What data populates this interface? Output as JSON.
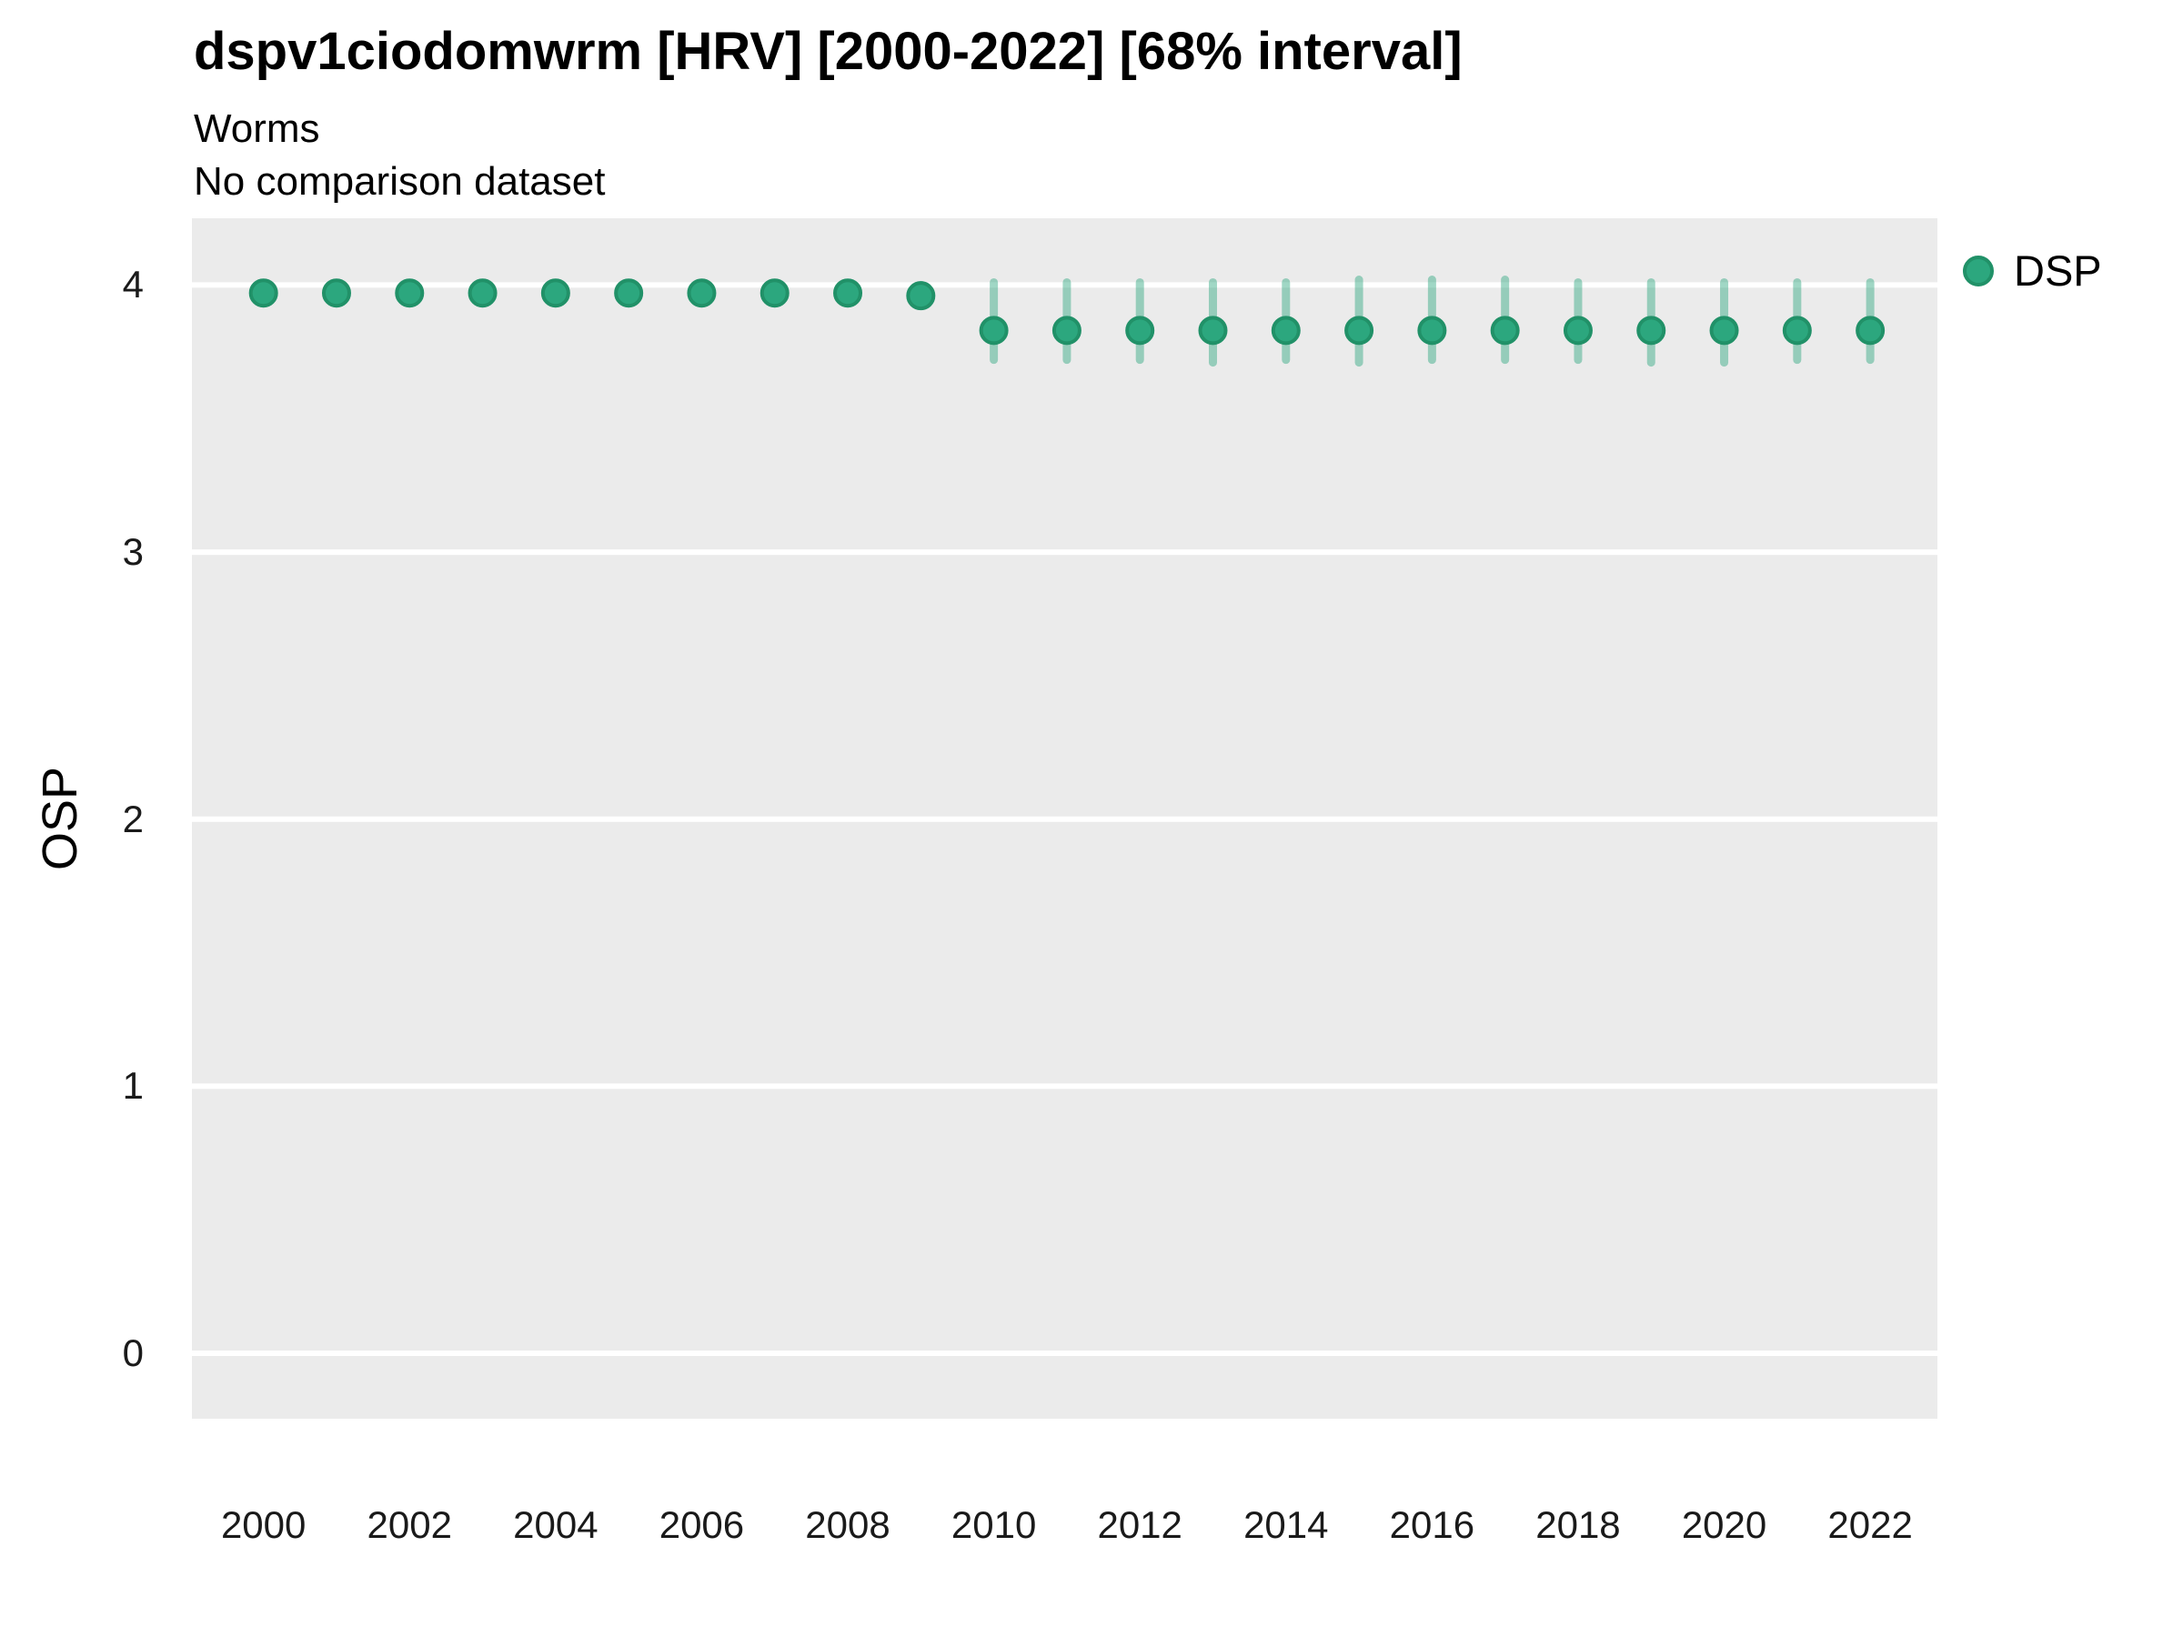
{
  "header": {
    "title": "dspv1ciodomwrm [HRV] [2000-2022] [68% interval]",
    "subtitle": "Worms",
    "comparison_note": "No comparison dataset"
  },
  "legend": {
    "position": "right",
    "items": [
      {
        "label": "DSP",
        "marker": "circle-icon",
        "color": "#2CA77E",
        "stroke": "#219168"
      }
    ]
  },
  "colors": {
    "panel_background": "#EBEBEB",
    "gridline": "#FFFFFF",
    "marker_fill": "#2CA77E",
    "marker_stroke": "#219168",
    "interval_bar": "rgba(44,167,126,0.45)",
    "tick_text": "#1a1a1a",
    "title_text": "#000000"
  },
  "chart_data": {
    "type": "scatter",
    "title": "dspv1ciodomwrm [HRV] [2000-2022] [68% interval]",
    "subtitle": "Worms",
    "annotation": "No comparison dataset",
    "interval": "68%",
    "xlabel": "",
    "ylabel": "OSP",
    "xlim": [
      1999.02,
      2022.92
    ],
    "ylim": [
      -0.245,
      4.25
    ],
    "xticks": [
      2000,
      2002,
      2004,
      2006,
      2008,
      2010,
      2012,
      2014,
      2016,
      2018,
      2020,
      2022
    ],
    "yticks": [
      0,
      1,
      2,
      3,
      4
    ],
    "grid": "horizontal-major-only",
    "legend_position": "right",
    "series": [
      {
        "name": "DSP",
        "points": [
          {
            "year": 2000,
            "value": 3.97,
            "lo": 3.94,
            "hi": 4.0
          },
          {
            "year": 2001,
            "value": 3.97,
            "lo": 3.94,
            "hi": 4.0
          },
          {
            "year": 2002,
            "value": 3.97,
            "lo": 3.94,
            "hi": 4.0
          },
          {
            "year": 2003,
            "value": 3.97,
            "lo": 3.94,
            "hi": 4.0
          },
          {
            "year": 2004,
            "value": 3.97,
            "lo": 3.94,
            "hi": 4.0
          },
          {
            "year": 2005,
            "value": 3.97,
            "lo": 3.94,
            "hi": 4.0
          },
          {
            "year": 2006,
            "value": 3.97,
            "lo": 3.94,
            "hi": 4.0
          },
          {
            "year": 2007,
            "value": 3.97,
            "lo": 3.94,
            "hi": 4.0
          },
          {
            "year": 2008,
            "value": 3.97,
            "lo": 3.94,
            "hi": 4.0
          },
          {
            "year": 2009,
            "value": 3.96,
            "lo": 3.93,
            "hi": 4.0
          },
          {
            "year": 2010,
            "value": 3.83,
            "lo": 3.72,
            "hi": 4.01
          },
          {
            "year": 2011,
            "value": 3.83,
            "lo": 3.72,
            "hi": 4.01
          },
          {
            "year": 2012,
            "value": 3.83,
            "lo": 3.72,
            "hi": 4.01
          },
          {
            "year": 2013,
            "value": 3.83,
            "lo": 3.71,
            "hi": 4.01
          },
          {
            "year": 2014,
            "value": 3.83,
            "lo": 3.72,
            "hi": 4.01
          },
          {
            "year": 2015,
            "value": 3.83,
            "lo": 3.71,
            "hi": 4.02
          },
          {
            "year": 2016,
            "value": 3.83,
            "lo": 3.72,
            "hi": 4.02
          },
          {
            "year": 2017,
            "value": 3.83,
            "lo": 3.72,
            "hi": 4.02
          },
          {
            "year": 2018,
            "value": 3.83,
            "lo": 3.72,
            "hi": 4.01
          },
          {
            "year": 2019,
            "value": 3.83,
            "lo": 3.71,
            "hi": 4.01
          },
          {
            "year": 2020,
            "value": 3.83,
            "lo": 3.71,
            "hi": 4.01
          },
          {
            "year": 2021,
            "value": 3.83,
            "lo": 3.72,
            "hi": 4.01
          },
          {
            "year": 2022,
            "value": 3.83,
            "lo": 3.72,
            "hi": 4.01
          }
        ]
      }
    ]
  }
}
